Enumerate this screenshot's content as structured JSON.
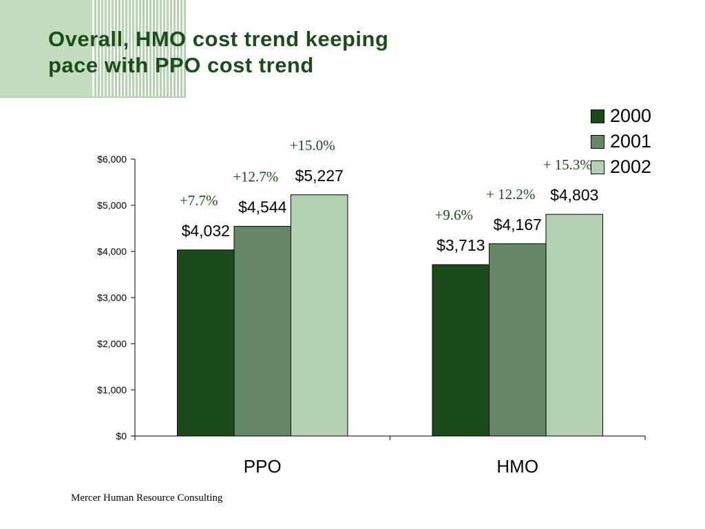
{
  "slide": {
    "title_lines": [
      "Overall, HMO cost trend keeping",
      "pace with PPO cost trend"
    ],
    "footer": "Mercer Human Resource Consulting"
  },
  "colors": {
    "title": "#1b4d1b",
    "accent_light": "#c2dcbe",
    "accent_mid": "#b5d4b0",
    "change_label": "#1b4d1b"
  },
  "chart_data": {
    "type": "bar",
    "categories": [
      "PPO",
      "HMO"
    ],
    "series": [
      {
        "name": "2000",
        "color": "#1b4a1b",
        "values": [
          4032,
          3713
        ],
        "labels": [
          "$4,032",
          "$3,713"
        ],
        "changes": [
          "+7.7%",
          "+9.6%"
        ]
      },
      {
        "name": "2001",
        "color": "#658768",
        "values": [
          4544,
          4167
        ],
        "labels": [
          "$4,544",
          "$4,167"
        ],
        "changes": [
          "+12.7%",
          "+ 12.2%"
        ]
      },
      {
        "name": "2002",
        "color": "#b3d1b0",
        "values": [
          5227,
          4803
        ],
        "labels": [
          "$5,227",
          "$4,803"
        ],
        "changes": [
          "+15.0%",
          "+ 15.3%"
        ]
      }
    ],
    "ylim": [
      0,
      6000
    ],
    "yticks": [
      0,
      1000,
      2000,
      3000,
      4000,
      5000,
      6000
    ],
    "ytick_labels": [
      "$0",
      "$1,000",
      "$2,000",
      "$3,000",
      "$4,000",
      "$5,000",
      "$6,000"
    ],
    "xlabel": "",
    "ylabel": "",
    "legend_position": "top-right",
    "grid": false
  }
}
